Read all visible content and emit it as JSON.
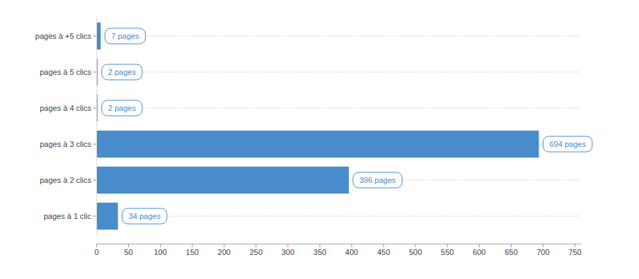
{
  "chart_data": {
    "type": "bar",
    "orientation": "horizontal",
    "categories": [
      "pages à +5 clics",
      "pages à 5 clics",
      "pages à 4 clics",
      "pages à 3 clics",
      "pages à 2 clics",
      "pages à 1 clic"
    ],
    "values": [
      7,
      2,
      2,
      694,
      396,
      34
    ],
    "value_labels": [
      "7 pages",
      "2 pages",
      "2 pages",
      "694 pages",
      "396 pages",
      "34 pages"
    ],
    "data_labels": true,
    "color": "#488ccb",
    "xlim": [
      0,
      760
    ],
    "xticks": [
      0,
      50,
      100,
      150,
      200,
      250,
      300,
      350,
      400,
      450,
      500,
      550,
      600,
      650,
      700,
      750
    ]
  }
}
